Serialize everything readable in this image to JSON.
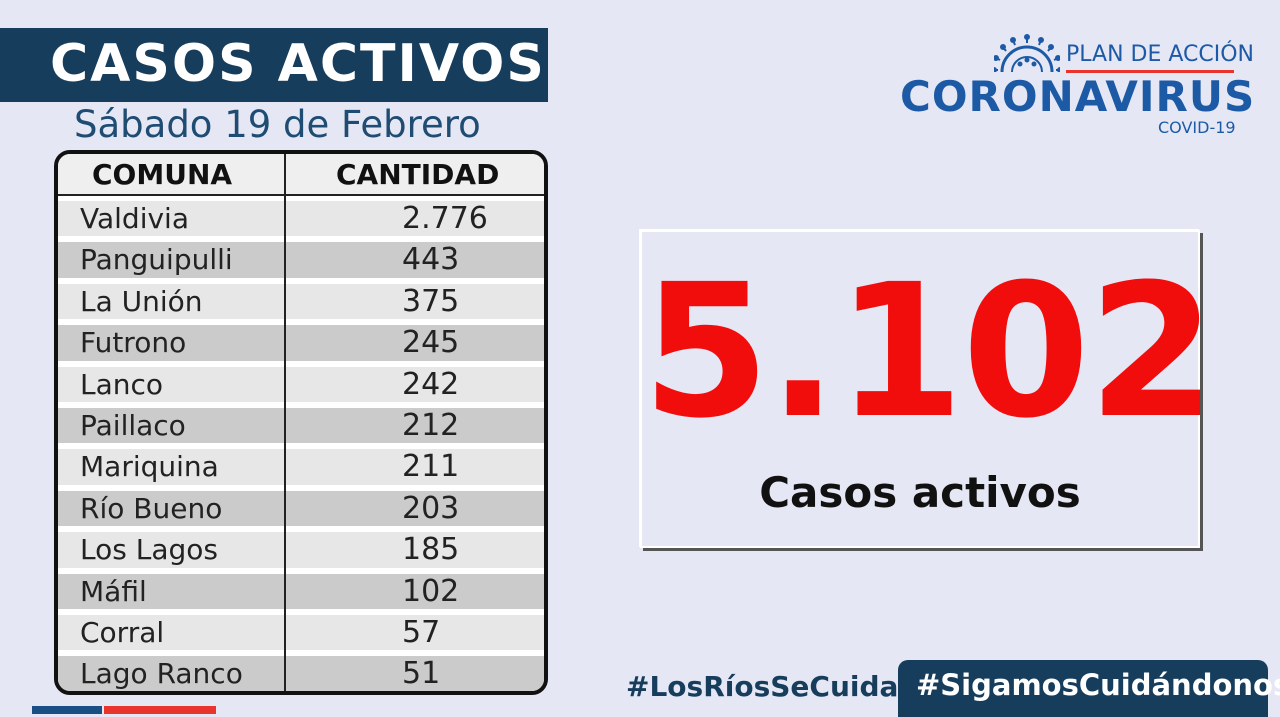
{
  "header": {
    "title": "CASOS ACTIVOS",
    "date": "Sábado 19 de Febrero"
  },
  "table": {
    "columns": [
      "COMUNA",
      "CANTIDAD"
    ],
    "rows": [
      {
        "comuna": "Valdivia",
        "cantidad": "2.776"
      },
      {
        "comuna": "Panguipulli",
        "cantidad": "443"
      },
      {
        "comuna": "La Unión",
        "cantidad": "375"
      },
      {
        "comuna": "Futrono",
        "cantidad": "245"
      },
      {
        "comuna": "Lanco",
        "cantidad": "242"
      },
      {
        "comuna": "Paillaco",
        "cantidad": "212"
      },
      {
        "comuna": "Mariquina",
        "cantidad": "211"
      },
      {
        "comuna": "Río Bueno",
        "cantidad": "203"
      },
      {
        "comuna": "Los Lagos",
        "cantidad": "185"
      },
      {
        "comuna": "Máfil",
        "cantidad": "102"
      },
      {
        "comuna": "Corral",
        "cantidad": "57"
      },
      {
        "comuna": "Lago Ranco",
        "cantidad": "51"
      }
    ]
  },
  "logo": {
    "plan": "PLAN DE ACCIÓN",
    "name": "CORONAVIRUS",
    "sub": "COVID-19",
    "icon": "virus-icon"
  },
  "total": {
    "value": "5.102",
    "label": "Casos activos"
  },
  "hashtags": {
    "first": "#LosRíosSeCuida",
    "second": "#SigamosCuidándonos"
  },
  "colors": {
    "navy": "#163d5c",
    "brand_blue": "#1d5aa6",
    "red": "#f20d0d",
    "background": "#e6e7f4"
  }
}
